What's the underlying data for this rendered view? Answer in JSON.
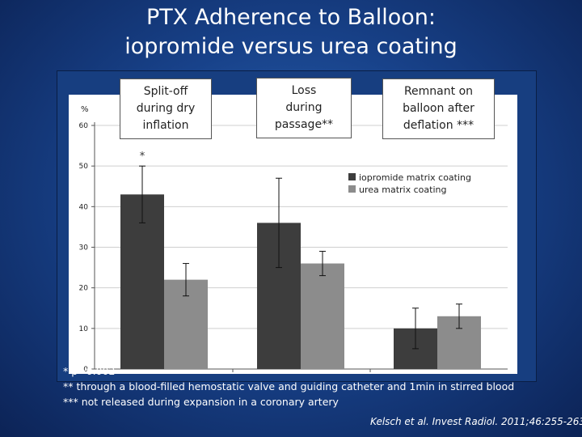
{
  "slide": {
    "title_line1": "PTX Adherence to Balloon:",
    "title_line2": "iopromide versus urea coating"
  },
  "colors": {
    "background": "#1c4a96",
    "iopromide": "#3d3d3d",
    "urea": "#8c8c8c"
  },
  "chart_data": {
    "type": "bar",
    "ylabel": "%",
    "ylim": [
      0,
      60
    ],
    "yticks": [
      "0",
      "10",
      "20",
      "30",
      "40",
      "50",
      "60"
    ],
    "categories": [
      "Split-off during dry inflation",
      "Loss during passage**",
      "Remnant on balloon after deflation ***"
    ],
    "category_labels": [
      [
        "Split-off",
        "during dry",
        "inflation"
      ],
      [
        "Loss",
        "during",
        "passage**"
      ],
      [
        "Remnant on",
        "balloon after",
        "deflation ***"
      ]
    ],
    "series": [
      {
        "name": "iopromide matrix coating",
        "color": "#3d3d3d",
        "values": [
          43,
          36,
          10
        ],
        "err_low": [
          36,
          25,
          5
        ],
        "err_high": [
          50,
          47,
          15
        ]
      },
      {
        "name": "urea matrix coating",
        "color": "#8c8c8c",
        "values": [
          22,
          26,
          13
        ],
        "err_low": [
          18,
          23,
          10
        ],
        "err_high": [
          26,
          29,
          16
        ]
      }
    ],
    "annotations": [
      {
        "text": "*",
        "category": 0
      }
    ],
    "legend_position": "upper-right"
  },
  "footnotes": {
    "note1": "* p=0.002",
    "note2": "** through a blood-filled hemostatic valve and guiding catheter and 1min in stirred blood",
    "note3": "*** not released during expansion in a coronary artery",
    "citation": "Kelsch et al. Invest Radiol. 2011;46:255-263"
  }
}
